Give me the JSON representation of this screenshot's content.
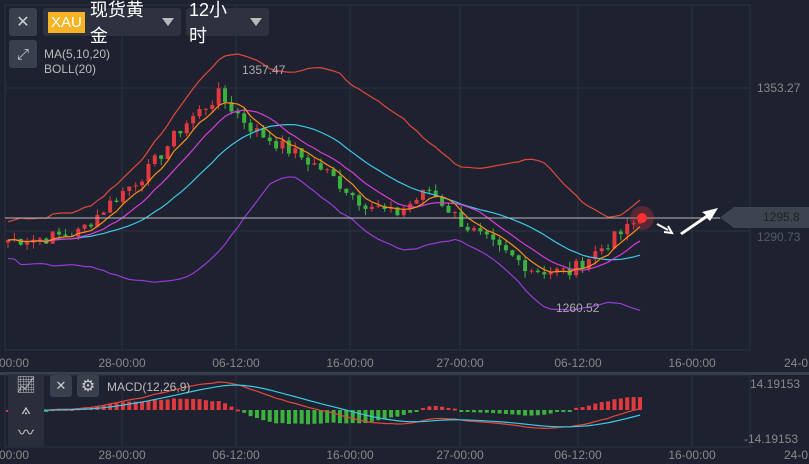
{
  "header": {
    "symbol_badge": "XAU",
    "symbol_name": "现货黄金",
    "period": "12小时"
  },
  "indicators": {
    "ma": "MA(5,10,20)",
    "boll": "BOLL(20)",
    "macd": "MACD(12,26,9)"
  },
  "price_axis": {
    "top_label": "1353.27",
    "current_price": "1295.8",
    "mid_label": "1290.73",
    "macd_max": "14.19153",
    "macd_min": "-14.19153"
  },
  "annotations": {
    "high": "1357.47",
    "low": "1260.52"
  },
  "time_axis": [
    "00:00",
    "28-00:00",
    "06-12:00",
    "16-00:00",
    "27-00:00",
    "06-12:00",
    "16-00:00",
    "24-0"
  ],
  "colors": {
    "up": "#e0393e",
    "down": "#3db13d",
    "ma5": "#ff8c1a",
    "ma10": "#d63cd6",
    "ma20": "#3cc8e6",
    "boll": "#e0493a",
    "macd_dif": "#e0493a",
    "macd_dea": "#3cc8e6"
  },
  "chart_data": {
    "type": "candlestick",
    "price_path": [
      1286.8,
      1287.5,
      1290,
      1304.3,
      1317.4,
      1337.1,
      1350.2,
      1334.9,
      1326.2,
      1317.4,
      1304.3,
      1297.7,
      1308.7,
      1293.4,
      1282.4,
      1273.7,
      1272.8,
      1284.6,
      1295.6
    ],
    "candle_count": 100
  }
}
